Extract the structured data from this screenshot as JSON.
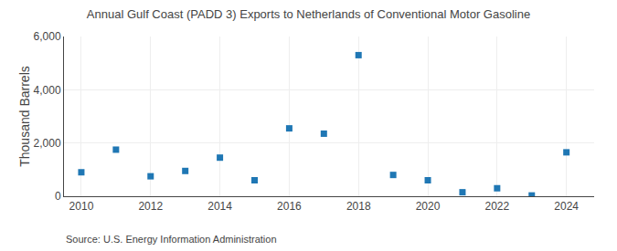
{
  "chart_data": {
    "type": "scatter",
    "title": "Annual Gulf Coast (PADD 3) Exports to Netherlands of Conventional Motor Gasoline",
    "y_label": "Thousand Barrels",
    "annotations": [
      "Source: U.S. Energy Information Administration"
    ],
    "x": [
      2010,
      2011,
      2012,
      2013,
      2014,
      2015,
      2016,
      2017,
      2018,
      2019,
      2020,
      2021,
      2022,
      2023,
      2024
    ],
    "values": [
      900,
      1750,
      750,
      950,
      1450,
      600,
      2550,
      2350,
      5300,
      800,
      600,
      150,
      300,
      30,
      1650
    ],
    "marker": "square",
    "xlim": [
      2009.5,
      2024.8
    ],
    "xticks": [
      2010,
      2012,
      2014,
      2016,
      2018,
      2020,
      2022,
      2024
    ],
    "ylim": [
      0,
      6000
    ],
    "yticks": [
      0,
      {
        "value": 2000,
        "label": "2,000"
      },
      {
        "value": 4000,
        "label": "4,000"
      },
      {
        "value": 6000,
        "label": "6,000"
      }
    ],
    "grid": true
  }
}
